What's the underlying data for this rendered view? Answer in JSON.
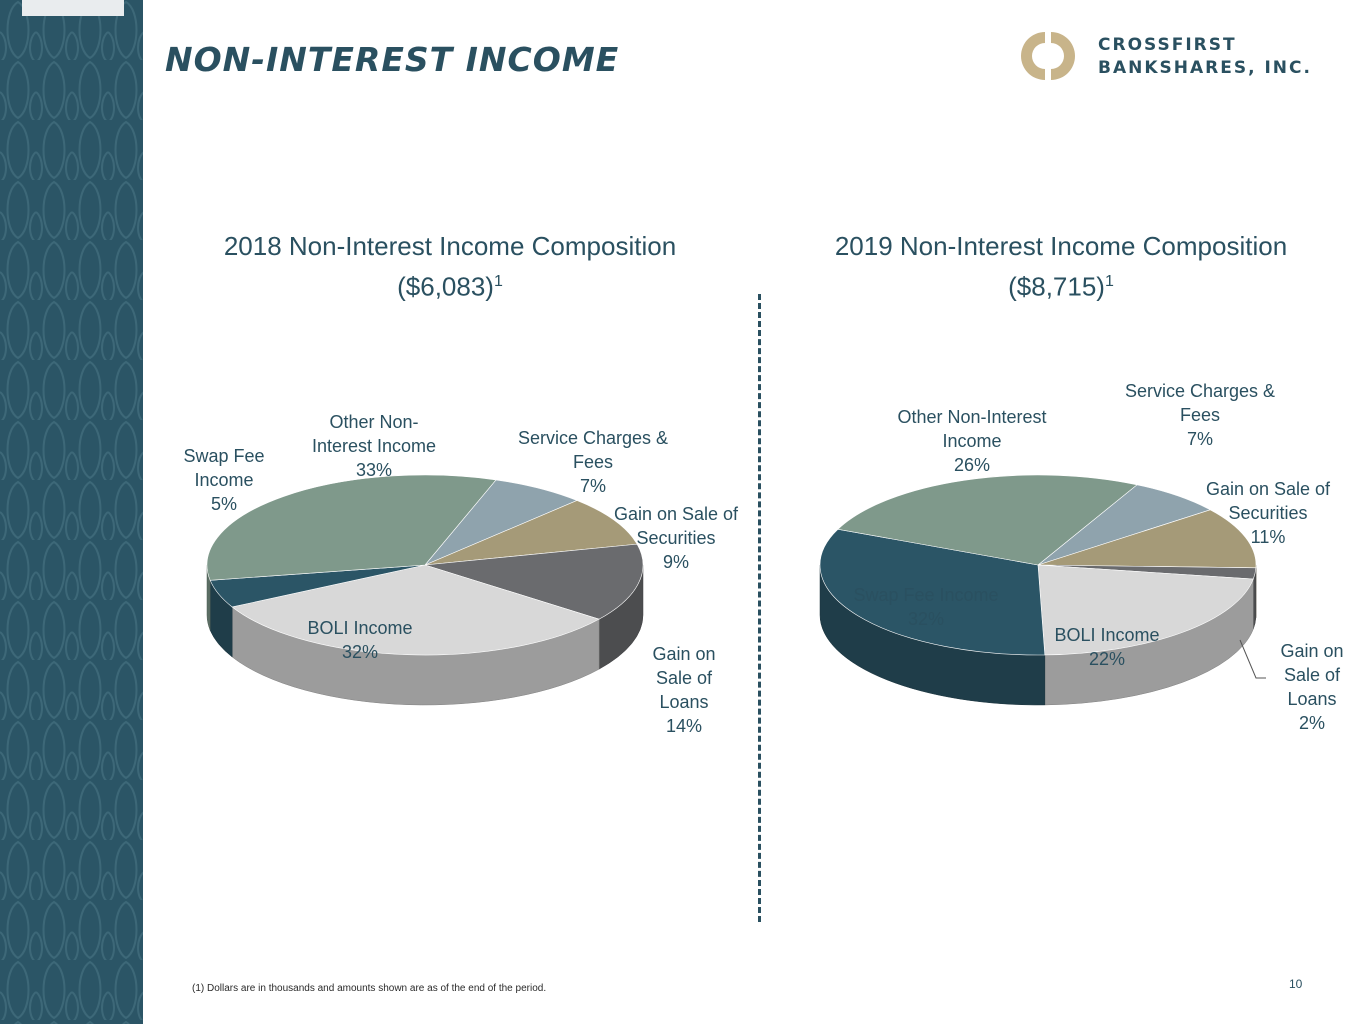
{
  "slide": {
    "title": "NON-INTEREST INCOME",
    "logo": {
      "line1": "CROSSFIRST",
      "line2": "BANKSHARES, INC."
    },
    "footnote": "(1) Dollars are in thousands and amounts shown are as of the end of the period.",
    "page_number": "10"
  },
  "colors": {
    "sidebar": "#2b5566",
    "title": "#2a5060",
    "logo_gold": "#c8b48a"
  },
  "chart_data": [
    {
      "type": "pie",
      "title": "2018 Non-Interest Income Composition",
      "subtitle": "($6,083)",
      "subtitle_footnote": "1",
      "slices": [
        {
          "label": "Service Charges & Fees",
          "value": 7,
          "label_lines": [
            "Service Charges &",
            "Fees",
            "7%"
          ],
          "color": "#8fa3ad"
        },
        {
          "label": "Gain on Sale of Securities",
          "value": 9,
          "label_lines": [
            "Gain on Sale of",
            "Securities",
            "9%"
          ],
          "color": "#a59a78"
        },
        {
          "label": "Gain on Sale of Loans",
          "value": 14,
          "label_lines": [
            "Gain on",
            "Sale of",
            "Loans",
            "14%"
          ],
          "color": "#6a6b6e"
        },
        {
          "label": "BOLI Income",
          "value": 32,
          "label_lines": [
            "BOLI Income",
            "32%"
          ],
          "color": "#d8d8d8"
        },
        {
          "label": "Swap Fee Income",
          "value": 5,
          "label_lines": [
            "Swap Fee",
            "Income",
            "5%"
          ],
          "color": "#2b5566"
        },
        {
          "label": "Other Non-Interest Income",
          "value": 33,
          "label_lines": [
            "Other Non-",
            "Interest Income",
            "33%"
          ],
          "color": "#7f998b"
        }
      ]
    },
    {
      "type": "pie",
      "title": "2019 Non-Interest Income Composition",
      "subtitle": "($8,715)",
      "subtitle_footnote": "1",
      "slices": [
        {
          "label": "Service Charges & Fees",
          "value": 7,
          "label_lines": [
            "Service Charges &",
            "Fees",
            "7%"
          ],
          "color": "#8fa3ad"
        },
        {
          "label": "Gain on Sale of Securities",
          "value": 11,
          "label_lines": [
            "Gain on Sale of",
            "Securities",
            "11%"
          ],
          "color": "#a59a78"
        },
        {
          "label": "Gain on Sale of Loans",
          "value": 2,
          "label_lines": [
            "Gain on",
            "Sale of",
            "Loans",
            "2%"
          ],
          "color": "#6a6b6e"
        },
        {
          "label": "BOLI Income",
          "value": 22,
          "label_lines": [
            "BOLI Income",
            "22%"
          ],
          "color": "#d8d8d8"
        },
        {
          "label": "Swap Fee Income",
          "value": 32,
          "label_lines": [
            "Swap Fee Income",
            "32%"
          ],
          "color": "#2b5566"
        },
        {
          "label": "Other Non-Interest Income",
          "value": 26,
          "label_lines": [
            "Other Non-Interest",
            "Income",
            "26%"
          ],
          "color": "#7f998b"
        }
      ]
    }
  ]
}
